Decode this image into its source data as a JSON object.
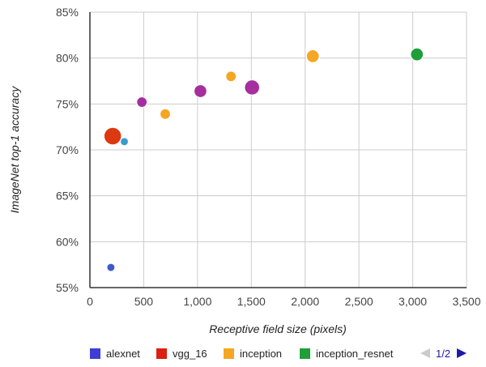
{
  "chart_data": {
    "type": "scatter",
    "title": "",
    "xlabel": "Receptive field size (pixels)",
    "ylabel": "ImageNet top-1 accuracy",
    "xlim": [
      0,
      3500
    ],
    "ylim": [
      55,
      85
    ],
    "x_ticks": [
      0,
      500,
      1000,
      1500,
      2000,
      2500,
      3000,
      3500
    ],
    "x_tick_labels": [
      "0",
      "500",
      "1,000",
      "1,500",
      "2,000",
      "2,500",
      "3,000",
      "3,500"
    ],
    "y_ticks": [
      55,
      60,
      65,
      70,
      75,
      80,
      85
    ],
    "y_tick_labels": [
      "55%",
      "60%",
      "65%",
      "70%",
      "75%",
      "80%",
      "85%"
    ],
    "grid": true,
    "bubble_size": "relative",
    "points": [
      {
        "x": 195,
        "y": 57.2,
        "size": 1,
        "color": "#3f5bc9"
      },
      {
        "x": 212,
        "y": 71.5,
        "size": 5,
        "color": "#dc3912"
      },
      {
        "x": 320,
        "y": 70.9,
        "size": 1,
        "color": "#3b9bd0"
      },
      {
        "x": 483,
        "y": 75.2,
        "size": 2,
        "color": "#a52f9e"
      },
      {
        "x": 700,
        "y": 73.9,
        "size": 2,
        "color": "#f5a623"
      },
      {
        "x": 1027,
        "y": 76.4,
        "size": 3,
        "color": "#a52f9e"
      },
      {
        "x": 1311,
        "y": 78.0,
        "size": 2,
        "color": "#f5a623"
      },
      {
        "x": 1507,
        "y": 76.8,
        "size": 4,
        "color": "#a52f9e"
      },
      {
        "x": 2071,
        "y": 80.2,
        "size": 3,
        "color": "#f5a623"
      },
      {
        "x": 3039,
        "y": 80.4,
        "size": 3,
        "color": "#1f9e3a"
      }
    ],
    "legend": {
      "position": "bottom",
      "entries": [
        {
          "label": "alexnet",
          "color": "#3e3ed6"
        },
        {
          "label": "vgg_16",
          "color": "#dc1f12"
        },
        {
          "label": "inception",
          "color": "#f5a623"
        },
        {
          "label": "inception_resnet",
          "color": "#1f9e3a"
        }
      ],
      "pager": {
        "text": "1/2",
        "prev_color": "#cccccc",
        "next_color": "#1a1aa6"
      }
    },
    "colors": {
      "grid": "#cccccc",
      "axis": "#333333",
      "frame": "#cccccc"
    }
  }
}
